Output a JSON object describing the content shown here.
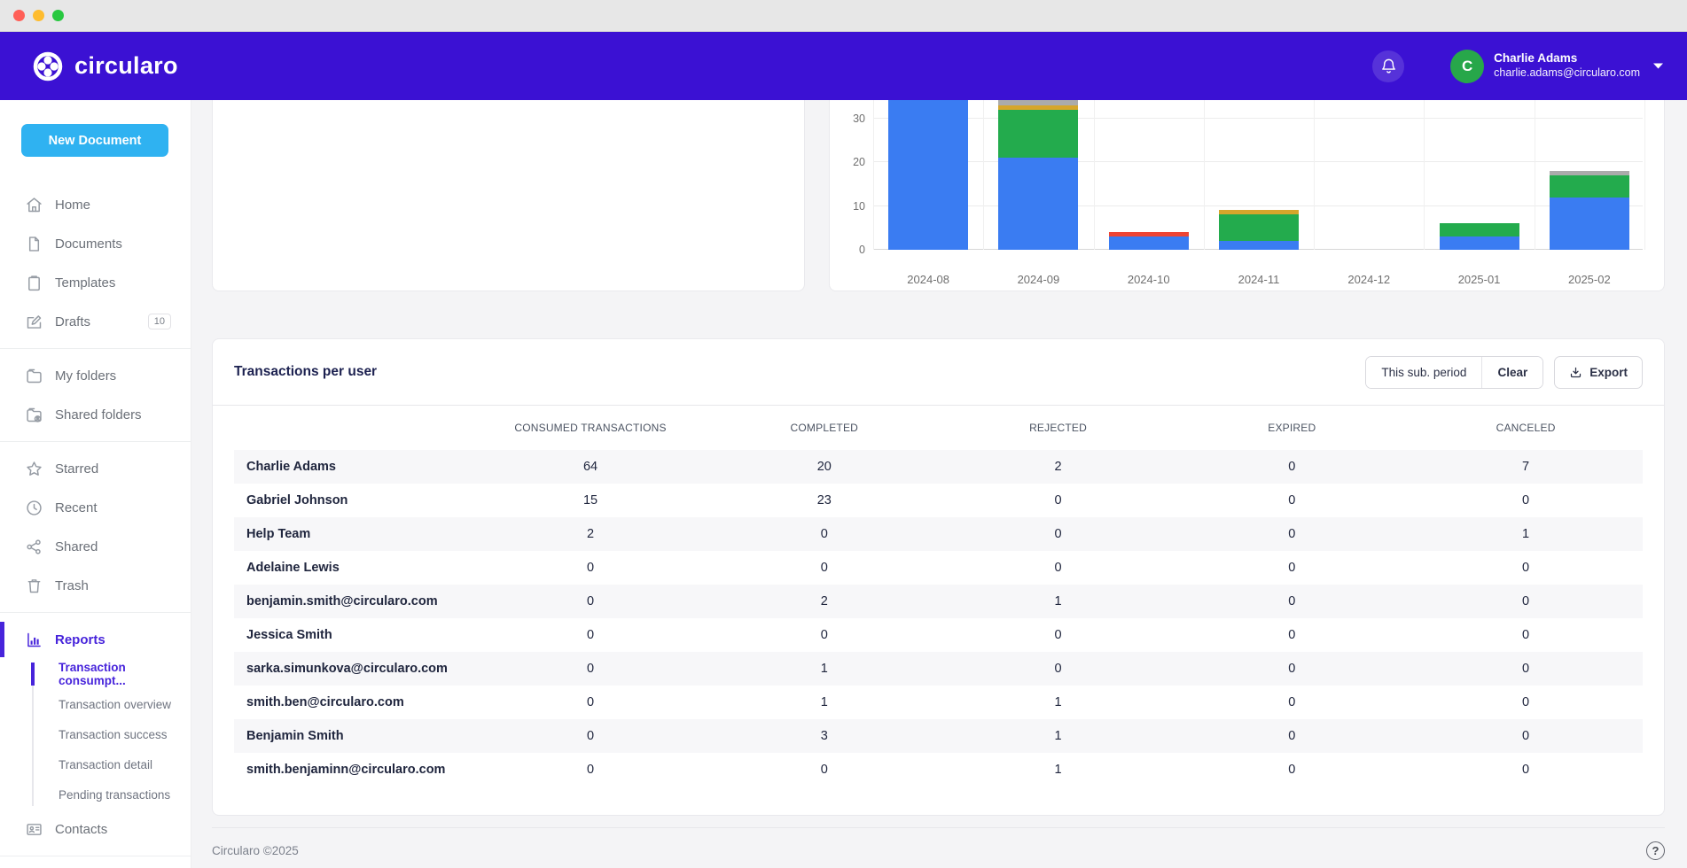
{
  "window": {
    "traffic_lights": [
      "close",
      "minimize",
      "zoom"
    ]
  },
  "header": {
    "brand": "circularo",
    "notifications_icon": "bell",
    "user": {
      "name": "Charlie Adams",
      "email": "charlie.adams@circularo.com",
      "avatar_initial": "C"
    }
  },
  "sidebar": {
    "new_document_label": "New Document",
    "items": [
      {
        "label": "Home",
        "icon": "home"
      },
      {
        "label": "Documents",
        "icon": "document"
      },
      {
        "label": "Templates",
        "icon": "clipboard"
      },
      {
        "label": "Drafts",
        "icon": "pencil",
        "badge": "10",
        "divider_after": true
      },
      {
        "label": "My folders",
        "icon": "folder"
      },
      {
        "label": "Shared folders",
        "icon": "folder-shared",
        "divider_after": true
      },
      {
        "label": "Starred",
        "icon": "star"
      },
      {
        "label": "Recent",
        "icon": "clock"
      },
      {
        "label": "Shared",
        "icon": "share"
      },
      {
        "label": "Trash",
        "icon": "trash",
        "divider_after": true
      },
      {
        "label": "Reports",
        "icon": "bar-chart",
        "active": true,
        "children": [
          {
            "label": "Transaction consumpt...",
            "active": true
          },
          {
            "label": "Transaction overview"
          },
          {
            "label": "Transaction success"
          },
          {
            "label": "Transaction detail"
          },
          {
            "label": "Pending transactions"
          }
        ]
      },
      {
        "label": "Contacts",
        "icon": "contact-card",
        "divider_after": true
      }
    ]
  },
  "chart_data": {
    "type": "stacked-bar",
    "title": "",
    "categories": [
      "2024-08",
      "2024-09",
      "2024-10",
      "2024-11",
      "2024-12",
      "2025-01",
      "2025-02"
    ],
    "series": [
      {
        "name": "blue",
        "color": "#3a7cf2",
        "values": [
          40,
          21,
          3,
          2,
          0,
          3,
          12
        ]
      },
      {
        "name": "green",
        "color": "#23ab4d",
        "values": [
          0,
          11,
          0,
          6,
          0,
          3,
          5
        ]
      },
      {
        "name": "yellow",
        "color": "#d6a62b",
        "values": [
          0,
          1,
          0,
          1,
          0,
          0,
          0
        ]
      },
      {
        "name": "gray",
        "color": "#ababab",
        "values": [
          0,
          2,
          0,
          0,
          0,
          0,
          1
        ]
      },
      {
        "name": "red",
        "color": "#ee4433",
        "values": [
          0,
          0,
          1,
          0,
          0,
          0,
          0
        ]
      }
    ],
    "yticks": [
      0,
      10,
      20,
      30
    ],
    "ylim_visible": [
      0,
      34
    ],
    "grid": true,
    "legend": "not visible",
    "note": "Chart is vertically cropped at top; the 2024-08 blue bar and top of 2024-09 extend above the visible area."
  },
  "table": {
    "title": "Transactions per user",
    "controls": {
      "period_label": "This sub. period",
      "clear_label": "Clear",
      "export_label": "Export"
    },
    "columns": [
      "CONSUMED TRANSACTIONS",
      "COMPLETED",
      "REJECTED",
      "EXPIRED",
      "CANCELED"
    ],
    "rows": [
      {
        "name": "Charlie Adams",
        "values": [
          64,
          20,
          2,
          0,
          7
        ]
      },
      {
        "name": "Gabriel Johnson",
        "values": [
          15,
          23,
          0,
          0,
          0
        ]
      },
      {
        "name": "Help Team",
        "values": [
          2,
          0,
          0,
          0,
          1
        ]
      },
      {
        "name": "Adelaine Lewis",
        "values": [
          0,
          0,
          0,
          0,
          0
        ]
      },
      {
        "name": "benjamin.smith@circularo.com",
        "values": [
          0,
          2,
          1,
          0,
          0
        ]
      },
      {
        "name": "Jessica Smith",
        "values": [
          0,
          0,
          0,
          0,
          0
        ]
      },
      {
        "name": "sarka.simunkova@circularo.com",
        "values": [
          0,
          1,
          0,
          0,
          0
        ]
      },
      {
        "name": "smith.ben@circularo.com",
        "values": [
          0,
          1,
          1,
          0,
          0
        ]
      },
      {
        "name": "Benjamin Smith",
        "values": [
          0,
          3,
          1,
          0,
          0
        ]
      },
      {
        "name": "smith.benjaminn@circularo.com",
        "values": [
          0,
          0,
          1,
          0,
          0
        ]
      }
    ]
  },
  "footer": {
    "copyright": "Circularo ©2025",
    "help_label": "?"
  },
  "colors": {
    "appbar": "#3b11d3",
    "accent": "#4724db",
    "new_doc_button": "#2fb2f1",
    "avatar": "#27a74a",
    "stripe": "#f7f7f9"
  }
}
